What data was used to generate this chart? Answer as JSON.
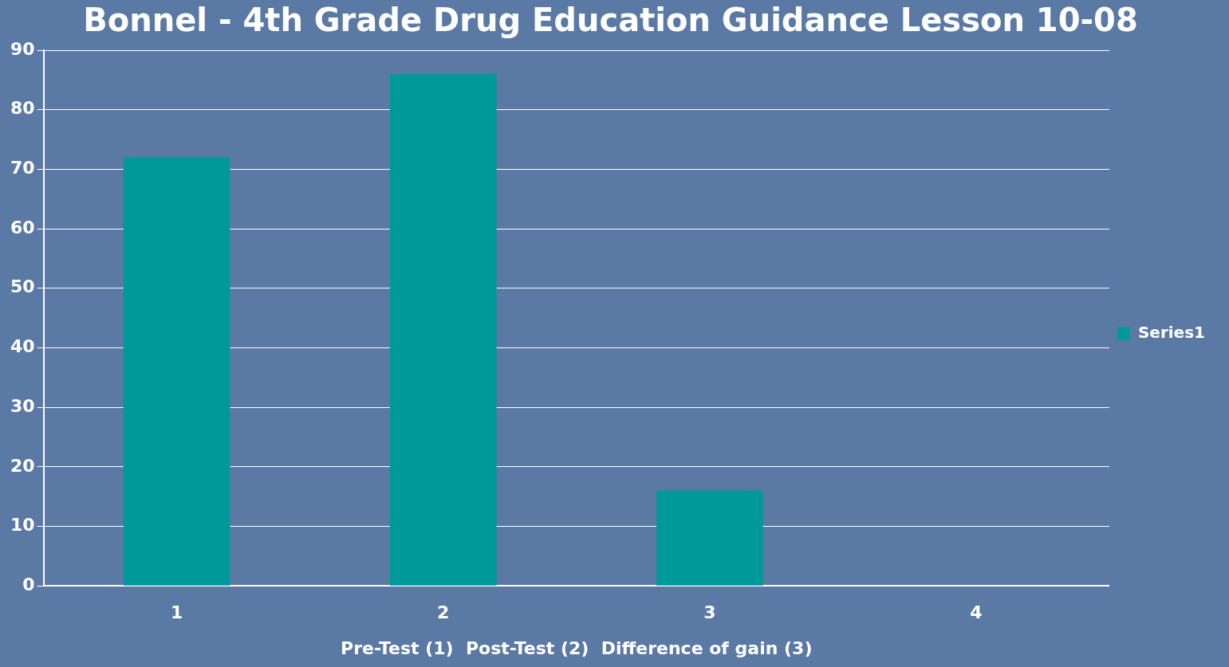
{
  "chart_data": {
    "type": "bar",
    "title": "Bonnel - 4th Grade Drug Education Guidance Lesson 10-08",
    "xlabel": "Pre-Test (1)  Post-Test (2)  Difference of gain (3)",
    "categories": [
      "1",
      "2",
      "3",
      "4"
    ],
    "series": [
      {
        "name": "Series1",
        "color": "#009999",
        "values": [
          72,
          86,
          16,
          null
        ]
      }
    ],
    "ylim": [
      0,
      90
    ],
    "yticks": [
      0,
      10,
      20,
      30,
      40,
      50,
      60,
      70,
      80,
      90
    ],
    "grid": "y",
    "legend": "right"
  }
}
